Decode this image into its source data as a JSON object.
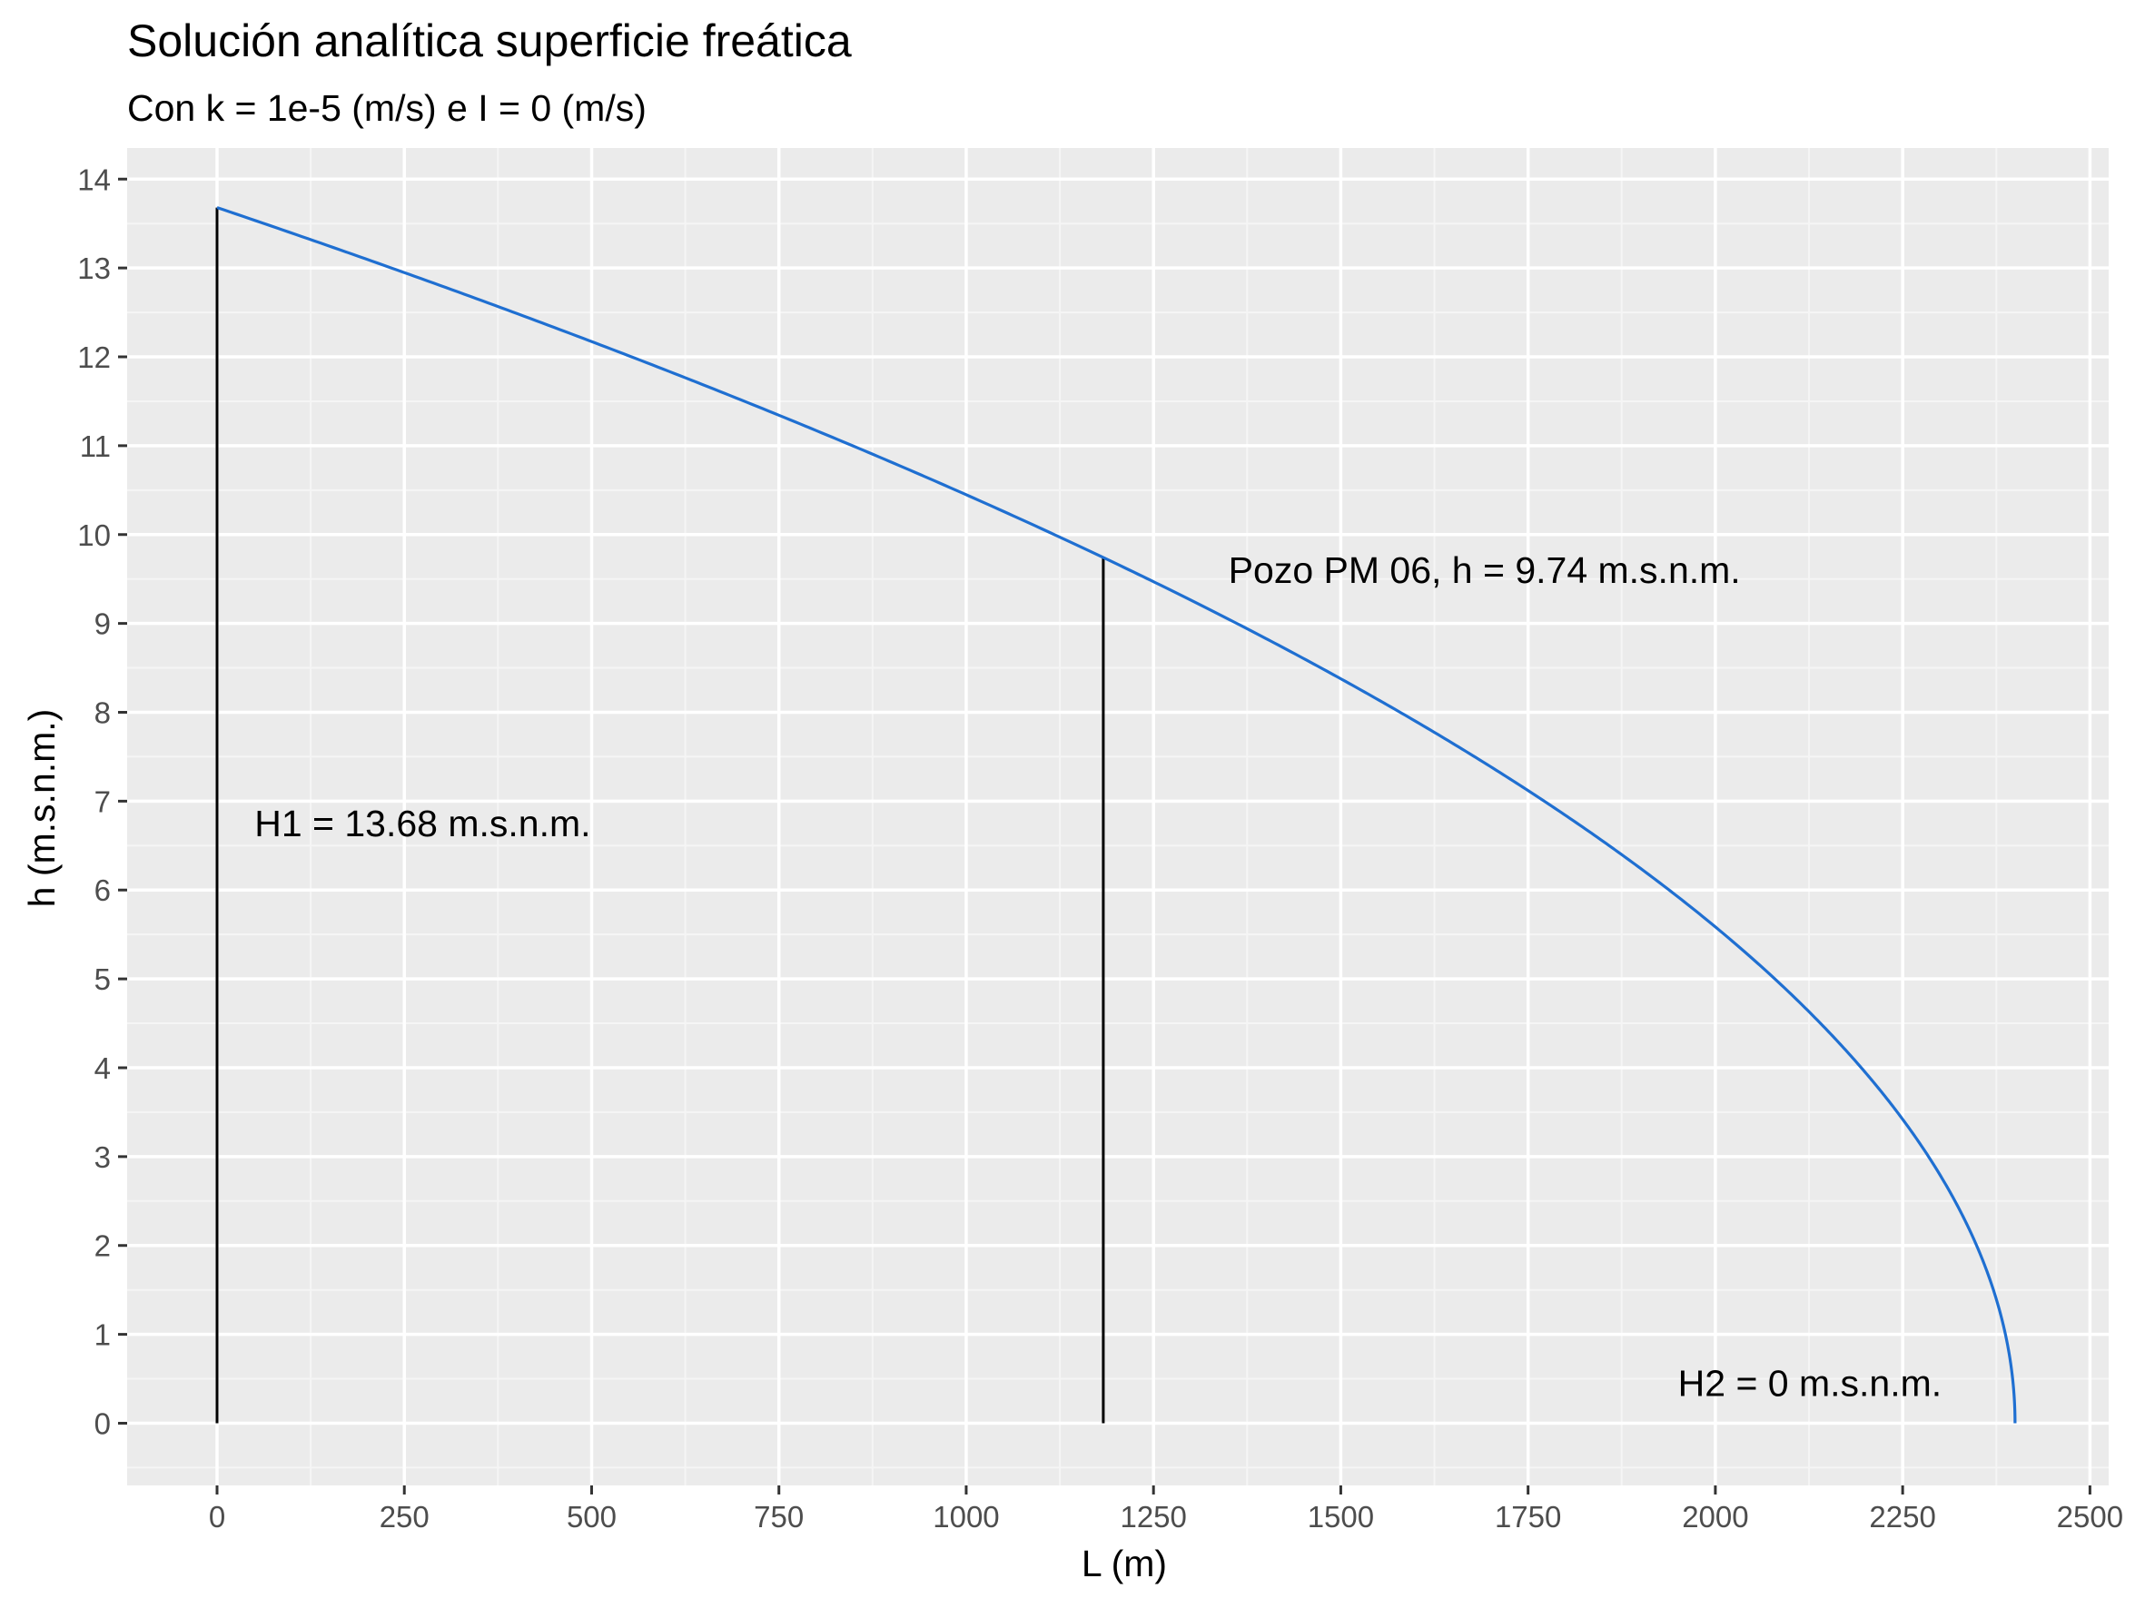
{
  "chart_data": {
    "type": "line",
    "title": "Solución analítica superficie freática",
    "subtitle": "Con k = 1e-5 (m/s) e I = 0 (m/s)",
    "xlabel": "L (m)",
    "ylabel": "h (m.s.n.m.)",
    "xlim": [
      -120,
      2525
    ],
    "ylim": [
      -0.7,
      14.35
    ],
    "x_ticks": [
      0,
      250,
      500,
      750,
      1000,
      1250,
      1500,
      1750,
      2000,
      2250,
      2500
    ],
    "x_tick_labels": [
      "0",
      "250",
      "500",
      "750",
      "1000",
      "1250",
      "1500",
      "1750",
      "2000",
      "2250",
      "2500"
    ],
    "y_ticks": [
      0,
      1,
      2,
      3,
      4,
      5,
      6,
      7,
      8,
      9,
      10,
      11,
      12,
      13,
      14
    ],
    "y_tick_labels": [
      "0",
      "1",
      "2",
      "3",
      "4",
      "5",
      "6",
      "7",
      "8",
      "9",
      "10",
      "11",
      "12",
      "13",
      "14"
    ],
    "grid": true,
    "legend": "none",
    "series": [
      {
        "color": "#1f6fd1",
        "model": "h = sqrt(H1^2 - (H1^2 - H2^2) * x / L)",
        "H1": 13.68,
        "H2": 0,
        "L": 2400
      }
    ],
    "vertical_segments": [
      {
        "x": 0,
        "y0": 0,
        "y1": 13.68,
        "color": "#000000"
      },
      {
        "x": 1183,
        "y0": 0,
        "y1": 9.74,
        "color": "#000000"
      }
    ],
    "annotations": [
      {
        "text": "H1 = 13.68 m.s.n.m.",
        "x": 50,
        "y": 6.75,
        "anchor": "start"
      },
      {
        "text": "Pozo PM 06, h = 9.74 m.s.n.m.",
        "x": 1350,
        "y": 9.6,
        "anchor": "start"
      },
      {
        "text": "H2 = 0 m.s.n.m.",
        "x": 1950,
        "y": 0.45,
        "anchor": "start"
      }
    ],
    "colors": {
      "panel_background": "#ebebeb",
      "grid_major": "#ffffff",
      "grid_minor": "#f5f5f5",
      "line": "#1f6fd1",
      "tick_label": "#4d4d4d",
      "tick_mark": "#333333"
    }
  }
}
